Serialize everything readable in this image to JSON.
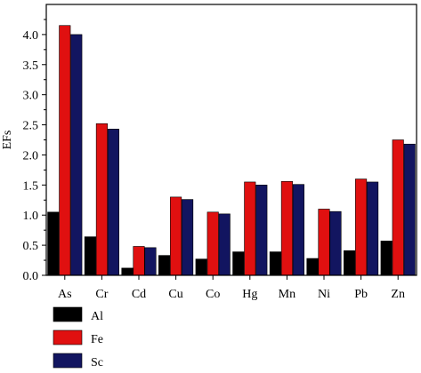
{
  "chart_data": {
    "type": "bar",
    "categories": [
      "As",
      "Cr",
      "Cd",
      "Cu",
      "Co",
      "Hg",
      "Mn",
      "Ni",
      "Pb",
      "Zn"
    ],
    "series": [
      {
        "name": "Al",
        "color": "#000000",
        "values": [
          1.05,
          0.64,
          0.12,
          0.33,
          0.27,
          0.39,
          0.39,
          0.28,
          0.41,
          0.57
        ]
      },
      {
        "name": "Fe",
        "color": "#e01010",
        "values": [
          4.15,
          2.52,
          0.48,
          1.3,
          1.05,
          1.55,
          1.56,
          1.1,
          1.6,
          2.25
        ]
      },
      {
        "name": "Sc",
        "color": "#121560",
        "values": [
          4.0,
          2.43,
          0.46,
          1.26,
          1.02,
          1.5,
          1.51,
          1.06,
          1.55,
          2.18
        ]
      }
    ],
    "ylabel": "EFs",
    "xlabel": "",
    "ylim": [
      0,
      4.5
    ],
    "yticks": [
      "0.0",
      "0.5",
      "1.0",
      "1.5",
      "2.0",
      "2.5",
      "3.0",
      "3.5",
      "4.0"
    ],
    "grid": false,
    "legend_position": "bottom-left"
  }
}
